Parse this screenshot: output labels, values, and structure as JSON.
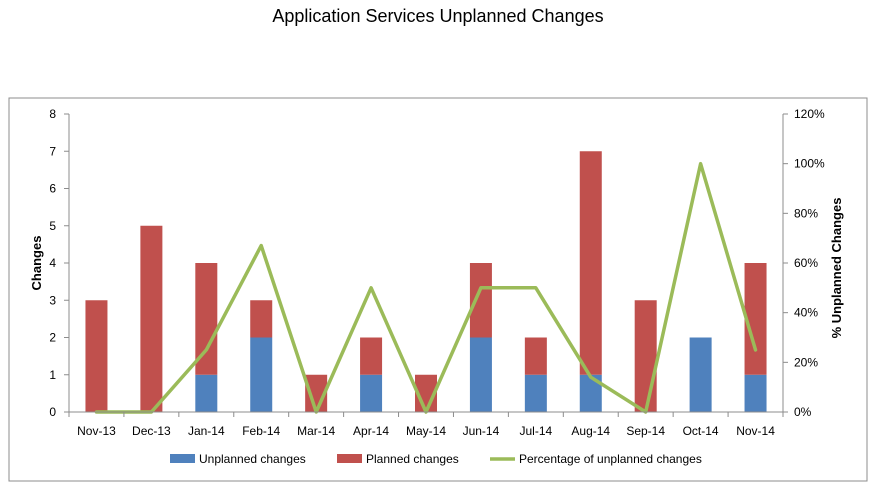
{
  "chart_data": {
    "type": "bar",
    "title": "Application Services Unplanned Changes",
    "categories": [
      "Nov-13",
      "Dec-13",
      "Jan-14",
      "Feb-14",
      "Mar-14",
      "Apr-14",
      "May-14",
      "Jun-14",
      "Jul-14",
      "Aug-14",
      "Sep-14",
      "Oct-14",
      "Nov-14"
    ],
    "series": [
      {
        "name": "Unplanned changes",
        "kind": "stacked-bar",
        "axis": "left",
        "color": "#4F81BD",
        "values": [
          0,
          0,
          1,
          2,
          0,
          1,
          0,
          2,
          1,
          1,
          0,
          2,
          1
        ]
      },
      {
        "name": "Planned changes",
        "kind": "stacked-bar",
        "axis": "left",
        "color": "#C0504D",
        "values": [
          3,
          5,
          3,
          1,
          1,
          1,
          1,
          2,
          1,
          6,
          3,
          0,
          3
        ]
      },
      {
        "name": "Percentage of unplanned changes",
        "kind": "line",
        "axis": "right",
        "color": "#9BBB59",
        "values": [
          0,
          0,
          25,
          67,
          0,
          50,
          0,
          50,
          50,
          14,
          0,
          100,
          25
        ]
      }
    ],
    "ylabel": "Changes",
    "y2label": "% Unplanned Changes",
    "ylim": [
      0,
      8
    ],
    "y_ticks": [
      "0",
      "1",
      "2",
      "3",
      "4",
      "5",
      "6",
      "7",
      "8"
    ],
    "y2lim": [
      0,
      120
    ],
    "y2_ticks": [
      "0%",
      "20%",
      "40%",
      "60%",
      "80%",
      "100%",
      "120%"
    ],
    "grid": false,
    "legend_position": "bottom"
  }
}
